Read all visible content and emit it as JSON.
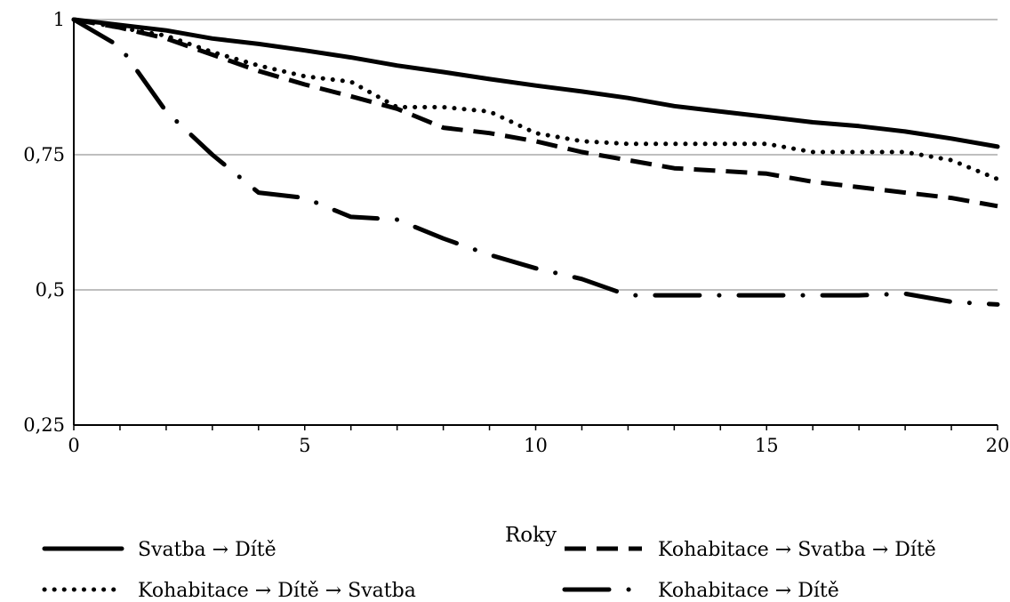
{
  "chart_data": {
    "type": "line",
    "title": "",
    "xlabel": "Roky",
    "ylabel": "",
    "xlim": [
      0,
      20
    ],
    "ylim": [
      0.25,
      1
    ],
    "xticks": [
      0,
      5,
      10,
      15,
      20
    ],
    "xtick_labels": [
      "0",
      "5",
      "10",
      "15",
      "20"
    ],
    "yticks": [
      1,
      0.75,
      0.5,
      0.25
    ],
    "ytick_labels": [
      "1",
      "0,75",
      "0,5",
      "0,25"
    ],
    "grid": "horizontal",
    "legend_position": "bottom",
    "series": [
      {
        "name": "Svatba → Dítě",
        "style": "solid",
        "color": "#000000",
        "x": [
          0,
          1,
          2,
          3,
          4,
          5,
          6,
          7,
          8,
          9,
          10,
          11,
          12,
          13,
          14,
          15,
          16,
          17,
          18,
          19,
          20
        ],
        "y": [
          1.0,
          0.99,
          0.98,
          0.965,
          0.955,
          0.943,
          0.93,
          0.915,
          0.903,
          0.89,
          0.878,
          0.867,
          0.855,
          0.84,
          0.83,
          0.82,
          0.81,
          0.803,
          0.793,
          0.78,
          0.765
        ]
      },
      {
        "name": "Kohabitace → Svatba → Dítě",
        "style": "dashed",
        "color": "#000000",
        "x": [
          0,
          1,
          2,
          3,
          4,
          5,
          6,
          7,
          8,
          9,
          10,
          11,
          12,
          13,
          14,
          15,
          16,
          17,
          18,
          19,
          20
        ],
        "y": [
          1.0,
          0.985,
          0.965,
          0.935,
          0.905,
          0.88,
          0.858,
          0.835,
          0.8,
          0.79,
          0.775,
          0.755,
          0.74,
          0.725,
          0.72,
          0.715,
          0.7,
          0.69,
          0.68,
          0.67,
          0.655
        ]
      },
      {
        "name": "Kohabitace → Dítě → Svatba",
        "style": "dotted",
        "color": "#000000",
        "x": [
          0,
          1,
          2,
          3,
          4,
          5,
          6,
          7,
          8,
          9,
          10,
          11,
          12,
          13,
          14,
          15,
          16,
          17,
          18,
          19,
          20
        ],
        "y": [
          1.0,
          0.985,
          0.97,
          0.94,
          0.915,
          0.895,
          0.885,
          0.838,
          0.838,
          0.83,
          0.79,
          0.775,
          0.77,
          0.77,
          0.77,
          0.77,
          0.755,
          0.755,
          0.755,
          0.74,
          0.705
        ]
      },
      {
        "name": "Kohabitace → Dítě",
        "style": "dashdot",
        "color": "#000000",
        "x": [
          0,
          1,
          2,
          3,
          4,
          5,
          6,
          7,
          8,
          9,
          10,
          11,
          12,
          13,
          14,
          15,
          16,
          17,
          18,
          19,
          20
        ],
        "y": [
          1.0,
          0.95,
          0.83,
          0.75,
          0.68,
          0.67,
          0.635,
          0.63,
          0.595,
          0.565,
          0.54,
          0.52,
          0.49,
          0.49,
          0.49,
          0.49,
          0.49,
          0.49,
          0.493,
          0.478,
          0.473
        ]
      }
    ]
  }
}
